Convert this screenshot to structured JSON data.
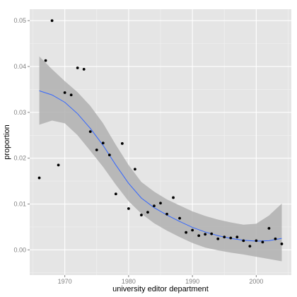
{
  "chart_data": {
    "type": "scatter",
    "xlabel": "university editor department",
    "ylabel": "proportion",
    "xlim": [
      1964.5,
      2005.5
    ],
    "ylim": [
      -0.0055,
      0.0525
    ],
    "x_ticks": [
      1970,
      1980,
      1990,
      2000
    ],
    "y_ticks": [
      0.0,
      0.01,
      0.02,
      0.03,
      0.04,
      0.05
    ],
    "x_tick_labels": [
      "1970",
      "1980",
      "1990",
      "2000"
    ],
    "y_tick_labels": [
      "0.00",
      "0.01",
      "0.02",
      "0.03",
      "0.04",
      "0.05"
    ],
    "grid": true,
    "colors": {
      "panel": "#e5e5e5",
      "grid_major": "#ffffff",
      "grid_minor": "#f2f2f2",
      "point": "#000000",
      "smooth_line": "#3366ff",
      "ribbon": "#b0b0b0"
    },
    "points": [
      {
        "x": 1966,
        "y": 0.0157
      },
      {
        "x": 1967,
        "y": 0.0413
      },
      {
        "x": 1968,
        "y": 0.05
      },
      {
        "x": 1969,
        "y": 0.0185
      },
      {
        "x": 1970,
        "y": 0.0343
      },
      {
        "x": 1971,
        "y": 0.0338
      },
      {
        "x": 1972,
        "y": 0.0397
      },
      {
        "x": 1973,
        "y": 0.0394
      },
      {
        "x": 1974,
        "y": 0.0258
      },
      {
        "x": 1975,
        "y": 0.0218
      },
      {
        "x": 1976,
        "y": 0.0233
      },
      {
        "x": 1977,
        "y": 0.0207
      },
      {
        "x": 1978,
        "y": 0.0122
      },
      {
        "x": 1979,
        "y": 0.0232
      },
      {
        "x": 1980,
        "y": 0.009
      },
      {
        "x": 1981,
        "y": 0.0176
      },
      {
        "x": 1982,
        "y": 0.0076
      },
      {
        "x": 1983,
        "y": 0.0082
      },
      {
        "x": 1984,
        "y": 0.0096
      },
      {
        "x": 1985,
        "y": 0.0102
      },
      {
        "x": 1986,
        "y": 0.0078
      },
      {
        "x": 1987,
        "y": 0.0114
      },
      {
        "x": 1988,
        "y": 0.0069
      },
      {
        "x": 1989,
        "y": 0.0038
      },
      {
        "x": 1990,
        "y": 0.0043
      },
      {
        "x": 1991,
        "y": 0.0031
      },
      {
        "x": 1992,
        "y": 0.0034
      },
      {
        "x": 1993,
        "y": 0.0035
      },
      {
        "x": 1994,
        "y": 0.0024
      },
      {
        "x": 1995,
        "y": 0.0028
      },
      {
        "x": 1996,
        "y": 0.0026
      },
      {
        "x": 1997,
        "y": 0.0028
      },
      {
        "x": 1998,
        "y": 0.002
      },
      {
        "x": 1999,
        "y": 0.0008
      },
      {
        "x": 2000,
        "y": 0.002
      },
      {
        "x": 2001,
        "y": 0.0017
      },
      {
        "x": 2002,
        "y": 0.0047
      },
      {
        "x": 2003,
        "y": 0.0024
      },
      {
        "x": 2004,
        "y": 0.0013
      }
    ],
    "smooth": {
      "x": [
        1966,
        1968,
        1970,
        1972,
        1974,
        1976,
        1978,
        1980,
        1982,
        1984,
        1986,
        1988,
        1990,
        1992,
        1994,
        1996,
        1998,
        2000,
        2002,
        2004
      ],
      "y": [
        0.0347,
        0.0338,
        0.0322,
        0.0297,
        0.0265,
        0.0228,
        0.0185,
        0.0145,
        0.0113,
        0.0092,
        0.0076,
        0.0062,
        0.0049,
        0.0039,
        0.0031,
        0.0025,
        0.0021,
        0.0019,
        0.002,
        0.0025
      ],
      "lower": [
        0.0273,
        0.0282,
        0.0276,
        0.025,
        0.0216,
        0.0181,
        0.0142,
        0.0106,
        0.0079,
        0.0058,
        0.0042,
        0.0028,
        0.0015,
        0.0005,
        -0.0001,
        -0.0006,
        -0.001,
        -0.0015,
        -0.002,
        -0.0025
      ],
      "upper": [
        0.0422,
        0.0394,
        0.0368,
        0.0344,
        0.0314,
        0.0276,
        0.0229,
        0.0185,
        0.0148,
        0.0127,
        0.011,
        0.0097,
        0.0084,
        0.0074,
        0.0066,
        0.006,
        0.0055,
        0.0057,
        0.0075,
        0.0101
      ]
    }
  }
}
